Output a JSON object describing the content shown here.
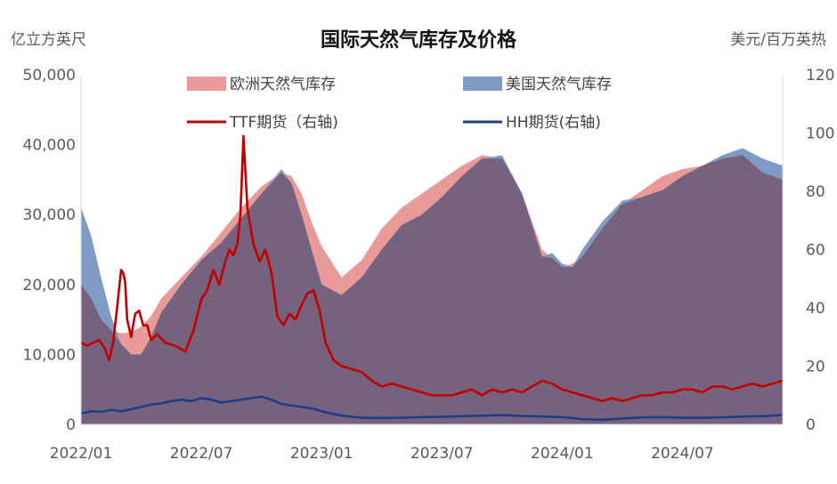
{
  "chart_data": {
    "type": "area",
    "title": "国际天然气库存及价格",
    "ylabel_left": "亿立方英尺",
    "ylabel_right": "美元/百万英热",
    "ylim_left": [
      0,
      50000
    ],
    "ylim_right": [
      0,
      120
    ],
    "yticks_left": [
      "0",
      "10,000",
      "20,000",
      "30,000",
      "40,000",
      "50,000"
    ],
    "yticks_right": [
      "0",
      "20",
      "40",
      "60",
      "80",
      "100",
      "120"
    ],
    "xticks": [
      "2022/01",
      "2022/07",
      "2023/01",
      "2023/07",
      "2024/01",
      "2024/07"
    ],
    "xrange": [
      "2022-01",
      "2024-12"
    ],
    "legend": {
      "eu_storage": "欧洲天然气库存",
      "us_storage": "美国天然气库存",
      "ttf": "TTF期货（右轴)",
      "hh": "HH期货(右轴)"
    },
    "colors": {
      "eu_storage": "#e89a98",
      "us_storage": "#7f9ac4",
      "overlap": "#76627f",
      "ttf": "#c00000",
      "hh": "#1f3c88",
      "axis": "#d9d9d9"
    },
    "series": [
      {
        "name": "欧洲天然气库存",
        "axis": "left",
        "x": [
          0,
          0.5,
          1,
          1.5,
          2,
          2.5,
          3,
          3.5,
          4,
          5,
          6,
          7,
          8,
          9,
          10,
          10.5,
          11,
          11.5,
          12,
          13,
          14,
          15,
          16,
          17,
          18,
          19,
          20,
          21,
          22,
          23,
          23.5,
          24,
          24.5,
          25,
          26,
          27,
          28,
          29,
          30,
          31,
          32,
          33,
          34,
          35
        ],
        "values": [
          20000,
          18000,
          15000,
          13500,
          13000,
          13200,
          14000,
          15500,
          18000,
          21000,
          24000,
          27500,
          31000,
          34000,
          36000,
          35500,
          33000,
          29000,
          25500,
          21000,
          23500,
          28000,
          31000,
          33000,
          35000,
          37000,
          38500,
          38000,
          33000,
          25000,
          23800,
          22500,
          23000,
          24000,
          28000,
          31500,
          33500,
          35500,
          36500,
          37000,
          38000,
          38500,
          36000,
          35000
        ]
      },
      {
        "name": "美国天然气库存",
        "axis": "left",
        "x": [
          0,
          0.5,
          1,
          1.5,
          2,
          2.5,
          3,
          3.5,
          4,
          5,
          6,
          7,
          8,
          9,
          10,
          10.5,
          11,
          11.5,
          12,
          13,
          14,
          15,
          16,
          17,
          18,
          19,
          20,
          21,
          22,
          23,
          23.5,
          24,
          24.5,
          25,
          26,
          27,
          28,
          29,
          30,
          31,
          32,
          33,
          34,
          35
        ],
        "values": [
          31000,
          27000,
          21000,
          15500,
          11500,
          10000,
          10000,
          12500,
          16000,
          20000,
          23500,
          26000,
          29500,
          33000,
          36500,
          34500,
          30000,
          25000,
          20000,
          18500,
          21000,
          25000,
          28500,
          30000,
          32500,
          35500,
          38000,
          38500,
          33000,
          24000,
          24500,
          23000,
          22500,
          25000,
          29000,
          32000,
          32500,
          33500,
          35500,
          37000,
          38500,
          39500,
          38000,
          37000
        ]
      },
      {
        "name": "TTF期货（右轴)",
        "axis": "right",
        "x": [
          0,
          0.3,
          0.6,
          0.9,
          1.2,
          1.4,
          1.6,
          1.8,
          2.0,
          2.1,
          2.2,
          2.3,
          2.5,
          2.7,
          2.9,
          3.1,
          3.3,
          3.5,
          3.8,
          4.2,
          4.7,
          5.2,
          5.6,
          6.0,
          6.3,
          6.6,
          6.9,
          7.2,
          7.4,
          7.6,
          7.8,
          7.95,
          8.1,
          8.3,
          8.6,
          8.9,
          9.2,
          9.5,
          9.8,
          10.1,
          10.4,
          10.7,
          11.0,
          11.3,
          11.6,
          11.9,
          12.2,
          12.6,
          13.0,
          13.5,
          14.0,
          14.5,
          15.0,
          15.5,
          16.0,
          16.5,
          17.0,
          17.5,
          18.0,
          18.5,
          19.0,
          19.5,
          20.0,
          20.5,
          21.0,
          21.5,
          22.0,
          22.5,
          23.0,
          23.5,
          24.0,
          24.5,
          25.0,
          25.5,
          26.0,
          26.5,
          27.0,
          27.5,
          28.0,
          28.5,
          29.0,
          29.5,
          30.0,
          30.5,
          31.0,
          31.5,
          32.0,
          32.5,
          33.0,
          33.5,
          34.0,
          34.5,
          35.0
        ],
        "values": [
          28,
          27,
          28,
          29,
          26,
          22,
          28,
          40,
          53,
          52,
          49,
          36,
          30,
          38,
          39,
          34,
          34,
          29,
          31,
          28,
          27,
          25,
          32,
          43,
          46,
          53,
          48,
          56,
          60,
          58,
          62,
          72,
          99,
          74,
          62,
          56,
          60,
          52,
          37,
          34,
          38,
          36,
          41,
          45,
          46,
          39,
          28,
          22,
          20,
          19,
          18,
          15,
          13,
          14,
          13,
          12,
          11,
          10,
          10,
          10,
          11,
          12,
          10,
          12,
          11,
          12,
          11,
          13,
          15,
          14,
          12,
          11,
          10,
          9,
          8,
          9,
          8,
          9,
          10,
          10,
          11,
          11,
          12,
          12,
          11,
          13,
          13,
          12,
          13,
          14,
          13,
          14,
          15
        ]
      },
      {
        "name": "HH期货(右轴)",
        "axis": "right",
        "x": [
          0,
          0.5,
          1,
          1.5,
          2,
          2.5,
          3,
          3.5,
          4,
          4.5,
          5,
          5.5,
          6,
          6.5,
          7,
          7.5,
          8,
          8.5,
          9,
          9.5,
          10,
          10.5,
          11,
          11.5,
          12,
          13,
          14,
          15,
          16,
          17,
          18,
          19,
          20,
          21,
          22,
          23,
          24,
          25,
          26,
          27,
          28,
          29,
          30,
          31,
          32,
          33,
          34,
          35
        ],
        "values": [
          3.8,
          4.5,
          4.3,
          5.0,
          4.5,
          5.2,
          6.0,
          6.8,
          7.2,
          8.0,
          8.5,
          8.0,
          9.0,
          8.5,
          7.5,
          8.0,
          8.5,
          9.0,
          9.5,
          8.5,
          7.0,
          6.5,
          6.0,
          5.5,
          4.5,
          3.0,
          2.3,
          2.2,
          2.3,
          2.5,
          2.6,
          2.8,
          3.0,
          3.2,
          2.9,
          2.7,
          2.5,
          1.8,
          1.6,
          2.0,
          2.4,
          2.5,
          2.3,
          2.3,
          2.4,
          2.7,
          2.8,
          3.2
        ]
      }
    ]
  }
}
